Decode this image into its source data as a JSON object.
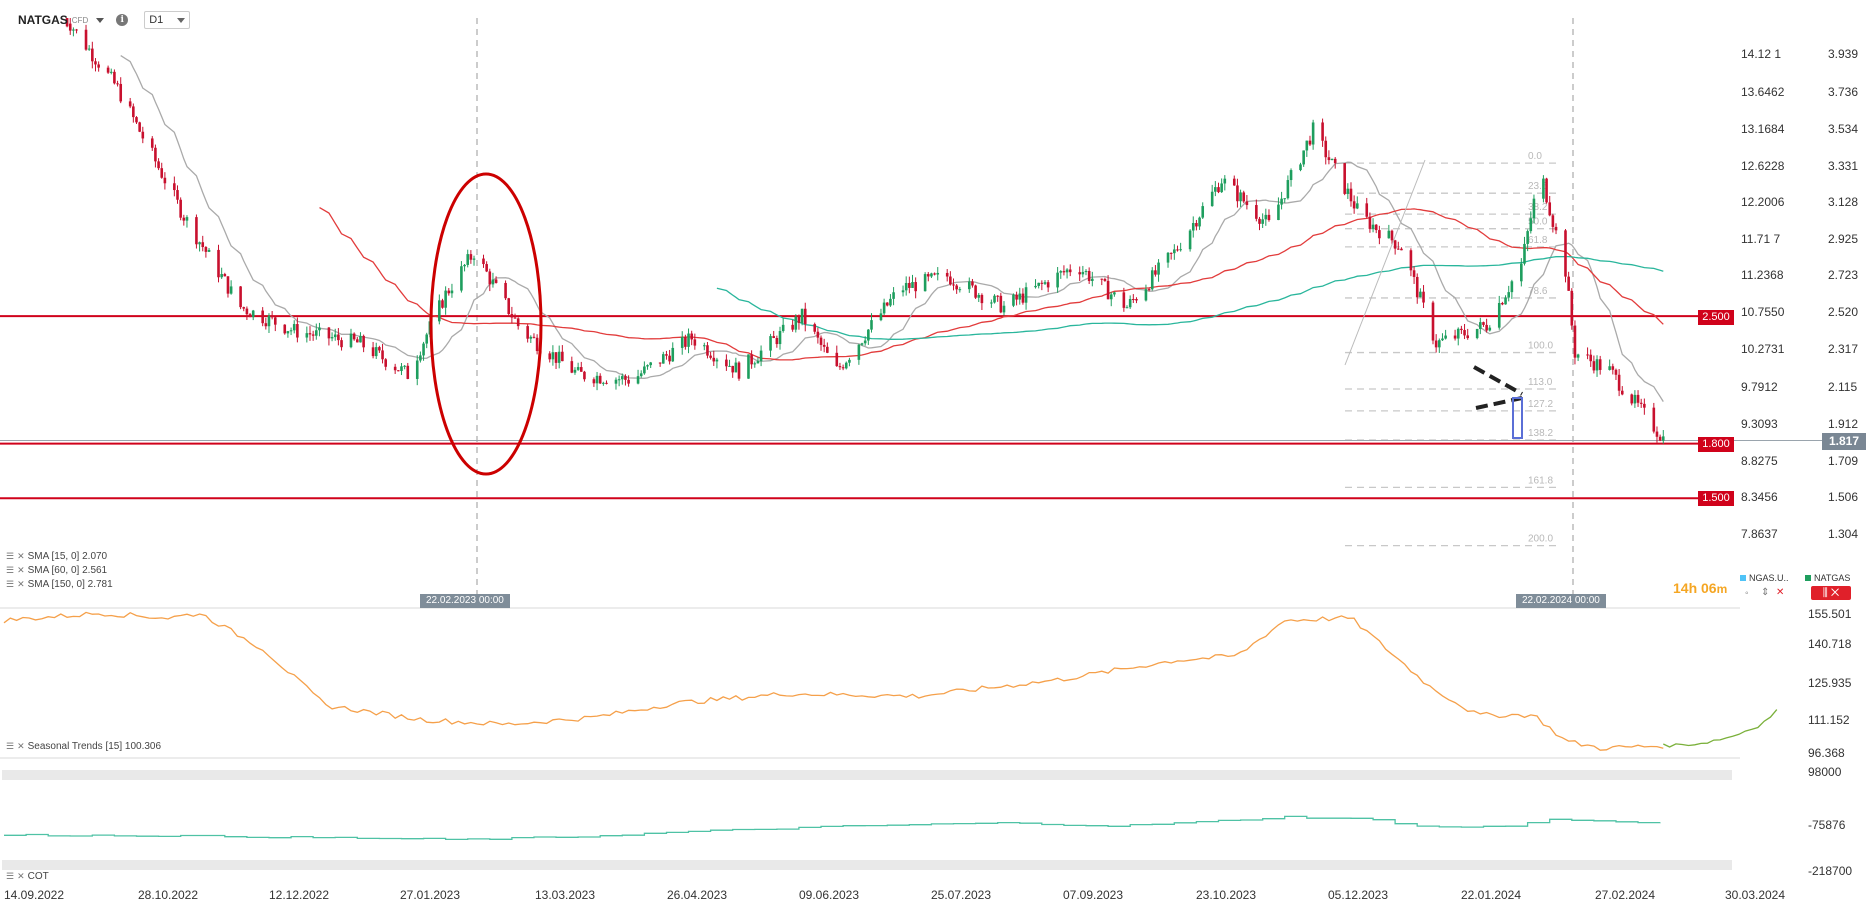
{
  "header": {
    "symbol": "NATGAS",
    "symbol_suffix": "CFD",
    "timeframe": "D1"
  },
  "colors": {
    "up": "#1e9e5e",
    "down": "#c8102e",
    "sma15": "#aaaaaa",
    "sma60": "#e23c3c",
    "sma150": "#2ab69c",
    "level": "#d0021b",
    "seasonal": "#f5a04a",
    "seasonal_forecast": "#7ab03a",
    "cot": "#4fc2a5",
    "fib": "#c8c8c8",
    "ellipse": "#cc0000",
    "pattern_box": "#5b6fd6"
  },
  "indicators": [
    {
      "label": "SMA [15, 0] 2.070"
    },
    {
      "label": "SMA [60, 0] 2.561"
    },
    {
      "label": "SMA [150, 0] 2.781"
    }
  ],
  "seasonal_label": "Seasonal  Trends  [15] 100.306",
  "cot_label": "COT",
  "date_markers": [
    "22.02.2023 00:00",
    "22.02.2024 00:00"
  ],
  "countdown": {
    "main": "14h 06",
    "unit": "m"
  },
  "legend": [
    {
      "name": "NGAS.U..",
      "color": "#4fc3f7"
    },
    {
      "name": "NATGAS",
      "color": "#1e9e5e"
    }
  ],
  "levels": [
    {
      "label": "2.500",
      "value": 2.5
    },
    {
      "label": "1.800",
      "value": 1.8
    },
    {
      "label": "1.500",
      "value": 1.5
    }
  ],
  "current_price": "1.817",
  "fib_levels": [
    "0.0",
    "23.6",
    "38.2",
    "50.0",
    "61.8",
    "78.6",
    "100.0",
    "113.0",
    "127.2",
    "138.2",
    "161.8",
    "200.0"
  ],
  "y_left": [
    "14.12 1",
    "13.6462",
    "13.1684",
    "12.6228",
    "12.2006",
    "11.71 7",
    "11.2368",
    "10.7550",
    "10.2731",
    "9.7912",
    "9.3093",
    "8.8275",
    "8.3456",
    "7.8637"
  ],
  "y_right": [
    "3.939",
    "3.736",
    "3.534",
    "3.331",
    "3.128",
    "2.925",
    "2.723",
    "2.520",
    "2.317",
    "2.115",
    "1.912",
    "1.709",
    "1.506",
    "1.304"
  ],
  "seasonal_axis": [
    "155.501",
    "140.718",
    "125.935",
    "111.152",
    "96.368"
  ],
  "cot_axis": [
    "98000",
    "-75876",
    "-218700"
  ],
  "x_labels": [
    "14.09.2022",
    "28.10.2022",
    "12.12.2022",
    "27.01.2023",
    "13.03.2023",
    "26.04.2023",
    "09.06.2023",
    "25.07.2023",
    "07.09.2023",
    "23.10.2023",
    "05.12.2023",
    "22.01.2024",
    "27.02.2024",
    "30.03.2024"
  ],
  "chart_data": {
    "type": "candlestick",
    "ylim": [
      1.24,
      4.05
    ],
    "x_start": "2022-09-14",
    "x_end": "2024-03-30",
    "horizontal_levels": [
      2.5,
      1.8,
      1.5
    ],
    "anchors": [
      [
        "2022-10-01",
        4.2
      ],
      [
        "2022-10-20",
        3.75
      ],
      [
        "2022-11-10",
        3.05
      ],
      [
        "2022-11-28",
        2.55
      ],
      [
        "2022-12-15",
        2.42
      ],
      [
        "2023-01-05",
        2.35
      ],
      [
        "2023-01-20",
        2.18
      ],
      [
        "2023-02-01",
        2.62
      ],
      [
        "2023-02-10",
        2.85
      ],
      [
        "2023-02-25",
        2.42
      ],
      [
        "2023-03-15",
        2.18
      ],
      [
        "2023-04-01",
        2.15
      ],
      [
        "2023-04-20",
        2.38
      ],
      [
        "2023-05-05",
        2.2
      ],
      [
        "2023-05-25",
        2.5
      ],
      [
        "2023-06-05",
        2.2
      ],
      [
        "2023-06-25",
        2.65
      ],
      [
        "2023-07-10",
        2.72
      ],
      [
        "2023-07-28",
        2.55
      ],
      [
        "2023-08-20",
        2.78
      ],
      [
        "2023-09-05",
        2.55
      ],
      [
        "2023-09-20",
        2.85
      ],
      [
        "2023-10-05",
        3.25
      ],
      [
        "2023-10-20",
        3.0
      ],
      [
        "2023-11-03",
        3.52
      ],
      [
        "2023-11-18",
        3.05
      ],
      [
        "2023-12-01",
        2.88
      ],
      [
        "2023-12-12",
        2.35
      ],
      [
        "2023-12-28",
        2.45
      ],
      [
        "2024-01-08",
        2.78
      ],
      [
        "2024-01-14",
        3.3
      ],
      [
        "2024-01-22",
        2.75
      ],
      [
        "2024-01-25",
        2.3
      ],
      [
        "2024-02-05",
        2.2
      ],
      [
        "2024-02-15",
        1.98
      ],
      [
        "2024-02-22",
        1.83
      ]
    ]
  },
  "seasonal_data": {
    "ylim": [
      96.368,
      155.501
    ],
    "anchors": [
      [
        "2022-09-14",
        152
      ],
      [
        "2022-10-15",
        155
      ],
      [
        "2022-11-05",
        153
      ],
      [
        "2022-11-15",
        155
      ],
      [
        "2022-12-05",
        140
      ],
      [
        "2022-12-25",
        116
      ],
      [
        "2023-01-25",
        110
      ],
      [
        "2023-02-20",
        108
      ],
      [
        "2023-03-20",
        111
      ],
      [
        "2023-04-15",
        117
      ],
      [
        "2023-05-20",
        121
      ],
      [
        "2023-07-01",
        120
      ],
      [
        "2023-08-15",
        127
      ],
      [
        "2023-09-20",
        135
      ],
      [
        "2023-10-10",
        137
      ],
      [
        "2023-10-25",
        152
      ],
      [
        "2023-11-15",
        153
      ],
      [
        "2023-12-10",
        124
      ],
      [
        "2023-12-25",
        112
      ],
      [
        "2024-01-12",
        112
      ],
      [
        "2024-01-22",
        101
      ],
      [
        "2024-02-02",
        98
      ],
      [
        "2024-02-22",
        99
      ]
    ],
    "forecast": [
      [
        "2024-02-22",
        99
      ],
      [
        "2024-03-05",
        100
      ],
      [
        "2024-03-15",
        103
      ],
      [
        "2024-03-24",
        108
      ],
      [
        "2024-03-30",
        115
      ]
    ]
  },
  "cot_data": {
    "ylim": [
      -218700,
      98000
    ],
    "anchors": [
      [
        "2022-09-14",
        -110000
      ],
      [
        "2022-11-01",
        -112000
      ],
      [
        "2022-12-20",
        -118000
      ],
      [
        "2023-02-05",
        -125000
      ],
      [
        "2023-03-15",
        -115000
      ],
      [
        "2023-04-20",
        -98000
      ],
      [
        "2023-06-10",
        -80000
      ],
      [
        "2023-07-25",
        -70000
      ],
      [
        "2023-09-01",
        -80000
      ],
      [
        "2023-10-01",
        -65000
      ],
      [
        "2023-10-25",
        -50000
      ],
      [
        "2023-11-20",
        -58000
      ],
      [
        "2023-12-10",
        -85000
      ],
      [
        "2024-01-05",
        -80000
      ],
      [
        "2024-01-18",
        -55000
      ],
      [
        "2024-02-01",
        -65000
      ],
      [
        "2024-02-22",
        -70000
      ]
    ]
  }
}
